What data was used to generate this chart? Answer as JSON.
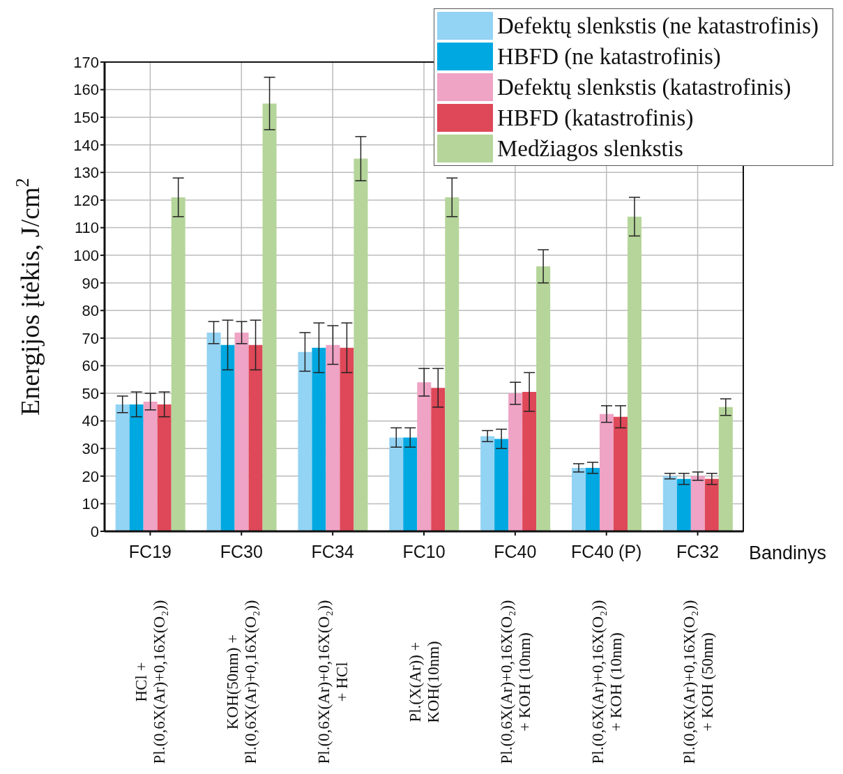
{
  "chart_data": {
    "type": "bar",
    "xlabel": "Bandinys",
    "ylabel": "Energijos įtėkis, J/cm$^{2}$",
    "categories": [
      "FC19",
      "FC30",
      "FC34",
      "FC10",
      "FC40",
      "FC40 (P)",
      "FC32"
    ],
    "annotations": [
      "HCl +\nPl.(0,6X(Ar)+0,16X(O₂))",
      "KOH(50nm) +\nPl.(0,6X(Ar)+0,16X(O₂))",
      "Pl.(0,6X(Ar)+0,16X(O₂))\n+ HCl",
      "Pl.(X(Ar)) +\nKOH(10nm)",
      "Pl.(0,6X(Ar)+0,16X(O₂))\n+ KOH (10nm)",
      "Pl.(0,6X(Ar)+0,16X(O₂))\n+ KOH (10nm)",
      "Pl.(0,6X(Ar)+0,16X(O₂))\n+ KOH (50nm)"
    ],
    "series": [
      {
        "name": "Defektų slenkstis (ne katastrofinis)",
        "color": "#93d3f3",
        "values": [
          46,
          72,
          65,
          34,
          34.5,
          23,
          20
        ],
        "errors": [
          3,
          4,
          7,
          3.5,
          2,
          1.5,
          1
        ]
      },
      {
        "name": "HBFD (ne katastrofinis)",
        "color": "#00a8e1",
        "values": [
          46,
          67.5,
          66.5,
          34,
          33.5,
          23,
          19
        ],
        "errors": [
          4.5,
          9,
          9,
          3.5,
          3.5,
          2,
          2
        ]
      },
      {
        "name": "Defektų slenkstis (katastrofinis)",
        "color": "#efa3c5",
        "values": [
          47,
          72,
          67.5,
          54,
          50,
          42.5,
          20
        ],
        "errors": [
          3,
          4,
          7,
          5,
          4,
          3,
          1.5
        ]
      },
      {
        "name": "HBFD (katastrofinis)",
        "color": "#de4858",
        "values": [
          46,
          67.5,
          66.5,
          52,
          50.5,
          41.5,
          19
        ],
        "errors": [
          4.5,
          9,
          9,
          7,
          7,
          4,
          2
        ]
      },
      {
        "name": "Medžiagos slenkstis",
        "color": "#b5d59a",
        "values": [
          121,
          155,
          135,
          121,
          96,
          114,
          45
        ],
        "errors": [
          7,
          9.5,
          8,
          7,
          6,
          7,
          3
        ]
      }
    ],
    "ylim": [
      0,
      170
    ],
    "yticks": [
      0,
      10,
      20,
      30,
      40,
      50,
      60,
      70,
      80,
      90,
      100,
      110,
      120,
      130,
      140,
      150,
      160,
      170
    ],
    "grid": true,
    "legend": "top right"
  }
}
